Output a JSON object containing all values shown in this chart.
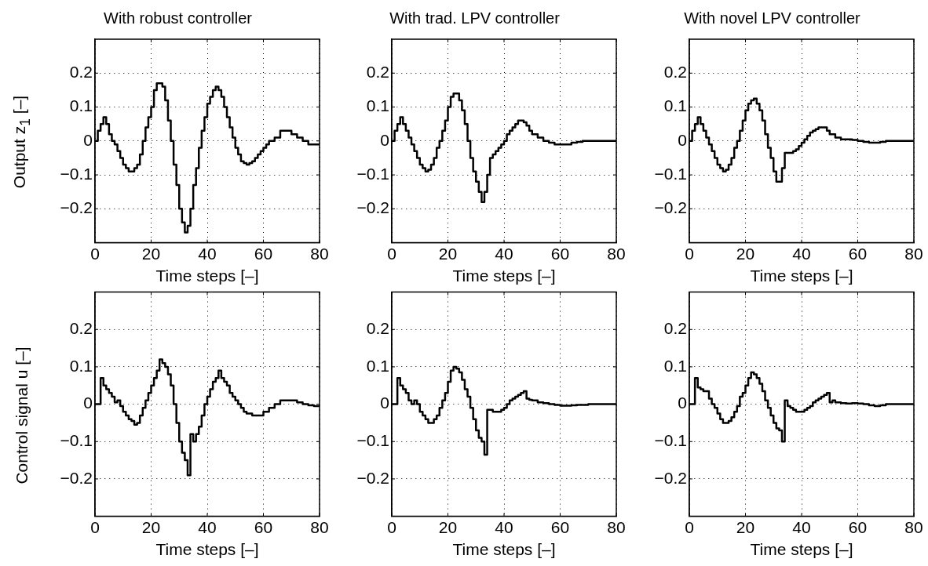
{
  "chart_data": [
    {
      "type": "step",
      "title": "With robust controller",
      "xlabel": "Time steps [–]",
      "ylabel": "Output z$_{1}$ [–]",
      "xlim": [
        0,
        80
      ],
      "xticks": [
        0,
        20,
        40,
        60,
        80
      ],
      "ylim": [
        -0.3,
        0.3
      ],
      "yticks": [
        -0.2,
        -0.1,
        0,
        0.1,
        0.2
      ],
      "grid": true,
      "series": [
        {
          "color": "#000000",
          "x": [
            0,
            1,
            2,
            3,
            4,
            5,
            6,
            7,
            8,
            9,
            10,
            11,
            12,
            13,
            14,
            15,
            16,
            17,
            18,
            19,
            20,
            21,
            22,
            23,
            24,
            25,
            26,
            27,
            28,
            29,
            30,
            31,
            32,
            33,
            34,
            35,
            36,
            37,
            38,
            39,
            40,
            41,
            42,
            43,
            44,
            45,
            46,
            47,
            48,
            49,
            50,
            51,
            52,
            53,
            54,
            55,
            56,
            57,
            58,
            59,
            60,
            61,
            62,
            64,
            66,
            68,
            70,
            72,
            74,
            76,
            78,
            80
          ],
          "values": [
            0,
            0.03,
            0.05,
            0.07,
            0.05,
            0.02,
            0,
            -0.01,
            -0.03,
            -0.05,
            -0.07,
            -0.08,
            -0.09,
            -0.09,
            -0.08,
            -0.07,
            -0.04,
            0,
            0.04,
            0.07,
            0.1,
            0.15,
            0.17,
            0.17,
            0.16,
            0.12,
            0.06,
            0,
            -0.07,
            -0.13,
            -0.2,
            -0.24,
            -0.27,
            -0.25,
            -0.2,
            -0.13,
            -0.08,
            -0.02,
            0.03,
            0.07,
            0.11,
            0.13,
            0.15,
            0.16,
            0.15,
            0.13,
            0.1,
            0.07,
            0.04,
            0.01,
            -0.02,
            -0.04,
            -0.06,
            -0.065,
            -0.07,
            -0.065,
            -0.06,
            -0.05,
            -0.04,
            -0.03,
            -0.02,
            -0.01,
            0,
            0.01,
            0.03,
            0.03,
            0.02,
            0.01,
            0,
            -0.01,
            -0.01,
            -0.01
          ]
        }
      ]
    },
    {
      "type": "step",
      "title": "With trad. LPV controller",
      "xlabel": "Time steps [–]",
      "xlim": [
        0,
        80
      ],
      "xticks": [
        0,
        20,
        40,
        60,
        80
      ],
      "ylim": [
        -0.3,
        0.3
      ],
      "yticks": [
        -0.2,
        -0.1,
        0,
        0.1,
        0.2
      ],
      "grid": true,
      "series": [
        {
          "color": "#000000",
          "x": [
            0,
            1,
            2,
            3,
            4,
            5,
            6,
            7,
            8,
            9,
            10,
            11,
            12,
            13,
            14,
            15,
            16,
            17,
            18,
            19,
            20,
            21,
            22,
            23,
            24,
            25,
            26,
            27,
            28,
            29,
            30,
            31,
            32,
            33,
            34,
            35,
            36,
            37,
            38,
            39,
            40,
            41,
            42,
            43,
            44,
            45,
            46,
            47,
            48,
            49,
            50,
            52,
            54,
            56,
            58,
            60,
            62,
            64,
            66,
            68,
            70,
            75,
            80
          ],
          "values": [
            0,
            0.03,
            0.05,
            0.07,
            0.05,
            0.03,
            0.01,
            -0.01,
            -0.03,
            -0.05,
            -0.07,
            -0.08,
            -0.09,
            -0.085,
            -0.07,
            -0.05,
            -0.02,
            0,
            0.03,
            0.06,
            0.1,
            0.13,
            0.14,
            0.14,
            0.12,
            0.09,
            0.05,
            0,
            -0.05,
            -0.09,
            -0.12,
            -0.15,
            -0.18,
            -0.15,
            -0.1,
            -0.05,
            -0.04,
            -0.03,
            -0.02,
            -0.01,
            0,
            0.02,
            0.03,
            0.04,
            0.05,
            0.06,
            0.06,
            0.055,
            0.045,
            0.03,
            0.02,
            0.01,
            0,
            -0.005,
            -0.01,
            -0.01,
            -0.01,
            -0.005,
            -0.003,
            0,
            0,
            0,
            0
          ]
        }
      ]
    },
    {
      "type": "step",
      "title": "With novel LPV controller",
      "xlabel": "Time steps [–]",
      "xlim": [
        0,
        80
      ],
      "xticks": [
        0,
        20,
        40,
        60,
        80
      ],
      "ylim": [
        -0.3,
        0.3
      ],
      "yticks": [
        -0.2,
        -0.1,
        0,
        0.1,
        0.2
      ],
      "grid": true,
      "series": [
        {
          "color": "#000000",
          "x": [
            0,
            1,
            2,
            3,
            4,
            5,
            6,
            7,
            8,
            9,
            10,
            11,
            12,
            13,
            14,
            15,
            16,
            17,
            18,
            19,
            20,
            21,
            22,
            23,
            24,
            25,
            26,
            27,
            28,
            29,
            30,
            31,
            32,
            33,
            34,
            35,
            36,
            37,
            38,
            39,
            40,
            41,
            42,
            43,
            44,
            45,
            46,
            47,
            48,
            49,
            50,
            52,
            54,
            56,
            58,
            60,
            62,
            64,
            66,
            68,
            70,
            75,
            80
          ],
          "values": [
            0,
            0.03,
            0.05,
            0.07,
            0.05,
            0.03,
            0.01,
            -0.01,
            -0.03,
            -0.05,
            -0.07,
            -0.08,
            -0.09,
            -0.085,
            -0.07,
            -0.05,
            -0.02,
            0,
            0.03,
            0.06,
            0.09,
            0.11,
            0.12,
            0.125,
            0.11,
            0.09,
            0.06,
            0.02,
            -0.02,
            -0.05,
            -0.09,
            -0.12,
            -0.12,
            -0.08,
            -0.035,
            -0.035,
            -0.035,
            -0.03,
            -0.025,
            -0.015,
            -0.005,
            0.005,
            0.015,
            0.025,
            0.03,
            0.035,
            0.04,
            0.04,
            0.04,
            0.03,
            0.02,
            0.01,
            0.005,
            0.005,
            0.003,
            0,
            -0.003,
            -0.005,
            -0.005,
            -0.003,
            0,
            0,
            0
          ]
        }
      ]
    },
    {
      "type": "step",
      "xlabel": "Time steps [–]",
      "ylabel": "Control signal u [–]",
      "xlim": [
        0,
        80
      ],
      "xticks": [
        0,
        20,
        40,
        60,
        80
      ],
      "ylim": [
        -0.3,
        0.3
      ],
      "yticks": [
        -0.2,
        -0.1,
        0,
        0.1,
        0.2
      ],
      "grid": true,
      "series": [
        {
          "color": "#000000",
          "x": [
            0,
            1,
            2,
            3,
            4,
            5,
            6,
            7,
            8,
            9,
            10,
            11,
            12,
            13,
            14,
            15,
            16,
            17,
            18,
            19,
            20,
            21,
            22,
            23,
            24,
            25,
            26,
            27,
            28,
            29,
            30,
            31,
            32,
            33,
            34,
            35,
            36,
            37,
            38,
            39,
            40,
            41,
            42,
            43,
            44,
            45,
            46,
            47,
            48,
            49,
            50,
            51,
            52,
            53,
            54,
            56,
            58,
            60,
            62,
            64,
            66,
            68,
            70,
            72,
            74,
            76,
            78,
            80
          ],
          "values": [
            0,
            0,
            0.07,
            0.05,
            0.04,
            0.03,
            0.02,
            0.005,
            0.01,
            -0.005,
            -0.02,
            -0.03,
            -0.04,
            -0.045,
            -0.055,
            -0.05,
            -0.03,
            -0.01,
            0.01,
            0.03,
            0.05,
            0.07,
            0.09,
            0.12,
            0.11,
            0.1,
            0.08,
            0.05,
            0,
            -0.05,
            -0.1,
            -0.13,
            -0.15,
            -0.19,
            -0.08,
            -0.1,
            -0.08,
            -0.06,
            -0.03,
            0,
            0.02,
            0.04,
            0.06,
            0.07,
            0.09,
            0.07,
            0.06,
            0.05,
            0.03,
            0.02,
            0.01,
            0,
            -0.01,
            -0.02,
            -0.025,
            -0.03,
            -0.03,
            -0.02,
            -0.01,
            0,
            0.01,
            0.01,
            0.01,
            0.005,
            0,
            -0.003,
            -0.005,
            -0.005
          ]
        }
      ]
    },
    {
      "type": "step",
      "xlabel": "Time steps [–]",
      "xlim": [
        0,
        80
      ],
      "xticks": [
        0,
        20,
        40,
        60,
        80
      ],
      "ylim": [
        -0.3,
        0.3
      ],
      "yticks": [
        -0.2,
        -0.1,
        0,
        0.1,
        0.2
      ],
      "grid": true,
      "series": [
        {
          "color": "#000000",
          "x": [
            0,
            1,
            2,
            3,
            4,
            5,
            6,
            7,
            8,
            9,
            10,
            11,
            12,
            13,
            14,
            15,
            16,
            17,
            18,
            19,
            20,
            21,
            22,
            23,
            24,
            25,
            26,
            27,
            28,
            29,
            30,
            31,
            32,
            33,
            34,
            35,
            36,
            37,
            38,
            39,
            40,
            41,
            42,
            43,
            44,
            45,
            46,
            47,
            48,
            49,
            50,
            52,
            54,
            56,
            58,
            60,
            62,
            64,
            66,
            70,
            75,
            80
          ],
          "values": [
            0,
            0,
            0.07,
            0.05,
            0.04,
            0.03,
            0.01,
            0,
            0.01,
            0,
            -0.02,
            -0.03,
            -0.04,
            -0.05,
            -0.05,
            -0.04,
            -0.03,
            -0.01,
            0.01,
            0.03,
            0.06,
            0.09,
            0.1,
            0.095,
            0.085,
            0.065,
            0.04,
            0.02,
            -0.01,
            -0.04,
            -0.07,
            -0.09,
            -0.1,
            -0.135,
            -0.015,
            -0.015,
            -0.02,
            -0.02,
            -0.02,
            -0.015,
            -0.01,
            0,
            0.01,
            0.015,
            0.02,
            0.025,
            0.03,
            0.035,
            0.015,
            0.012,
            0.01,
            0.005,
            0.003,
            0,
            -0.002,
            -0.004,
            -0.004,
            -0.003,
            -0.002,
            0,
            0,
            0
          ]
        }
      ]
    },
    {
      "type": "step",
      "xlabel": "Time steps [–]",
      "xlim": [
        0,
        80
      ],
      "xticks": [
        0,
        20,
        40,
        60,
        80
      ],
      "ylim": [
        -0.3,
        0.3
      ],
      "yticks": [
        -0.2,
        -0.1,
        0,
        0.1,
        0.2
      ],
      "grid": true,
      "series": [
        {
          "color": "#000000",
          "x": [
            0,
            1,
            2,
            3,
            4,
            5,
            6,
            7,
            8,
            9,
            10,
            11,
            12,
            13,
            14,
            15,
            16,
            17,
            18,
            19,
            20,
            21,
            22,
            23,
            24,
            25,
            26,
            27,
            28,
            29,
            30,
            31,
            32,
            33,
            34,
            35,
            36,
            37,
            38,
            39,
            40,
            41,
            42,
            43,
            44,
            45,
            46,
            47,
            48,
            49,
            50,
            51,
            52,
            54,
            56,
            58,
            60,
            62,
            64,
            66,
            68,
            70,
            75,
            80
          ],
          "values": [
            0,
            0,
            0.07,
            0.045,
            0.04,
            0.035,
            0.035,
            0.015,
            0,
            -0.01,
            -0.025,
            -0.04,
            -0.05,
            -0.05,
            -0.045,
            -0.035,
            -0.02,
            -0.005,
            0.02,
            0.03,
            0.05,
            0.07,
            0.085,
            0.08,
            0.07,
            0.055,
            0.035,
            0.01,
            -0.01,
            -0.03,
            -0.05,
            -0.065,
            -0.07,
            -0.1,
            0.01,
            -0.005,
            -0.01,
            -0.015,
            -0.02,
            -0.02,
            -0.02,
            -0.015,
            -0.01,
            -0.005,
            0.005,
            0.01,
            0.015,
            0.02,
            0.025,
            0.03,
            0.005,
            0.01,
            0.005,
            0.003,
            0.002,
            0.003,
            0.002,
            0,
            -0.003,
            -0.005,
            -0.003,
            0,
            0,
            0
          ]
        }
      ]
    }
  ]
}
